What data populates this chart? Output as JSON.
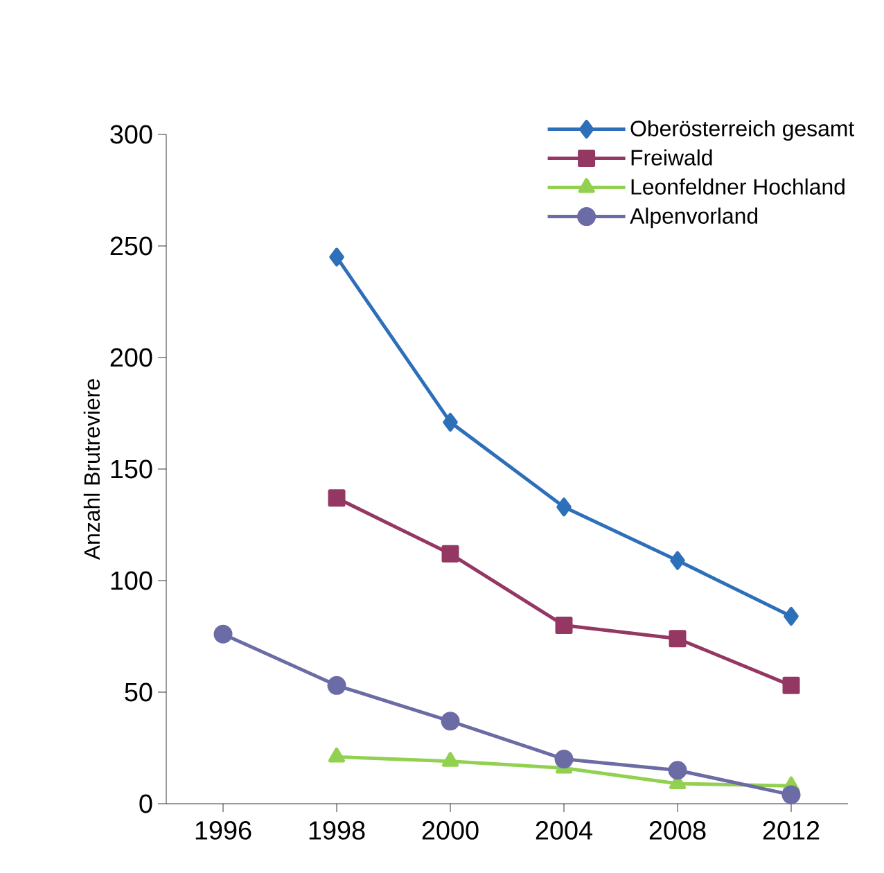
{
  "chart_data": {
    "type": "line",
    "ylabel": "Anzahl Brutreviere",
    "categories": [
      "1996",
      "1998",
      "2000",
      "2004",
      "2008",
      "2012"
    ],
    "ylim": [
      0,
      300
    ],
    "yticks": [
      0,
      50,
      100,
      150,
      200,
      250,
      300
    ],
    "grid": false,
    "legend": "top right",
    "line_style": "solid",
    "series": [
      {
        "name": "Oberösterreich gesamt",
        "color": "#2e6fba",
        "marker": "diamond",
        "values": [
          null,
          245,
          171,
          133,
          109,
          84
        ]
      },
      {
        "name": "Freiwald",
        "color": "#953763",
        "marker": "square",
        "values": [
          null,
          137,
          112,
          80,
          74,
          53
        ]
      },
      {
        "name": "Leonfeldner Hochland",
        "color": "#92d050",
        "marker": "triangle",
        "values": [
          null,
          21,
          19,
          16,
          9,
          8
        ]
      },
      {
        "name": "Alpenvorland",
        "color": "#6b6ba5",
        "marker": "circle",
        "values": [
          76,
          53,
          37,
          20,
          15,
          4
        ]
      }
    ]
  }
}
